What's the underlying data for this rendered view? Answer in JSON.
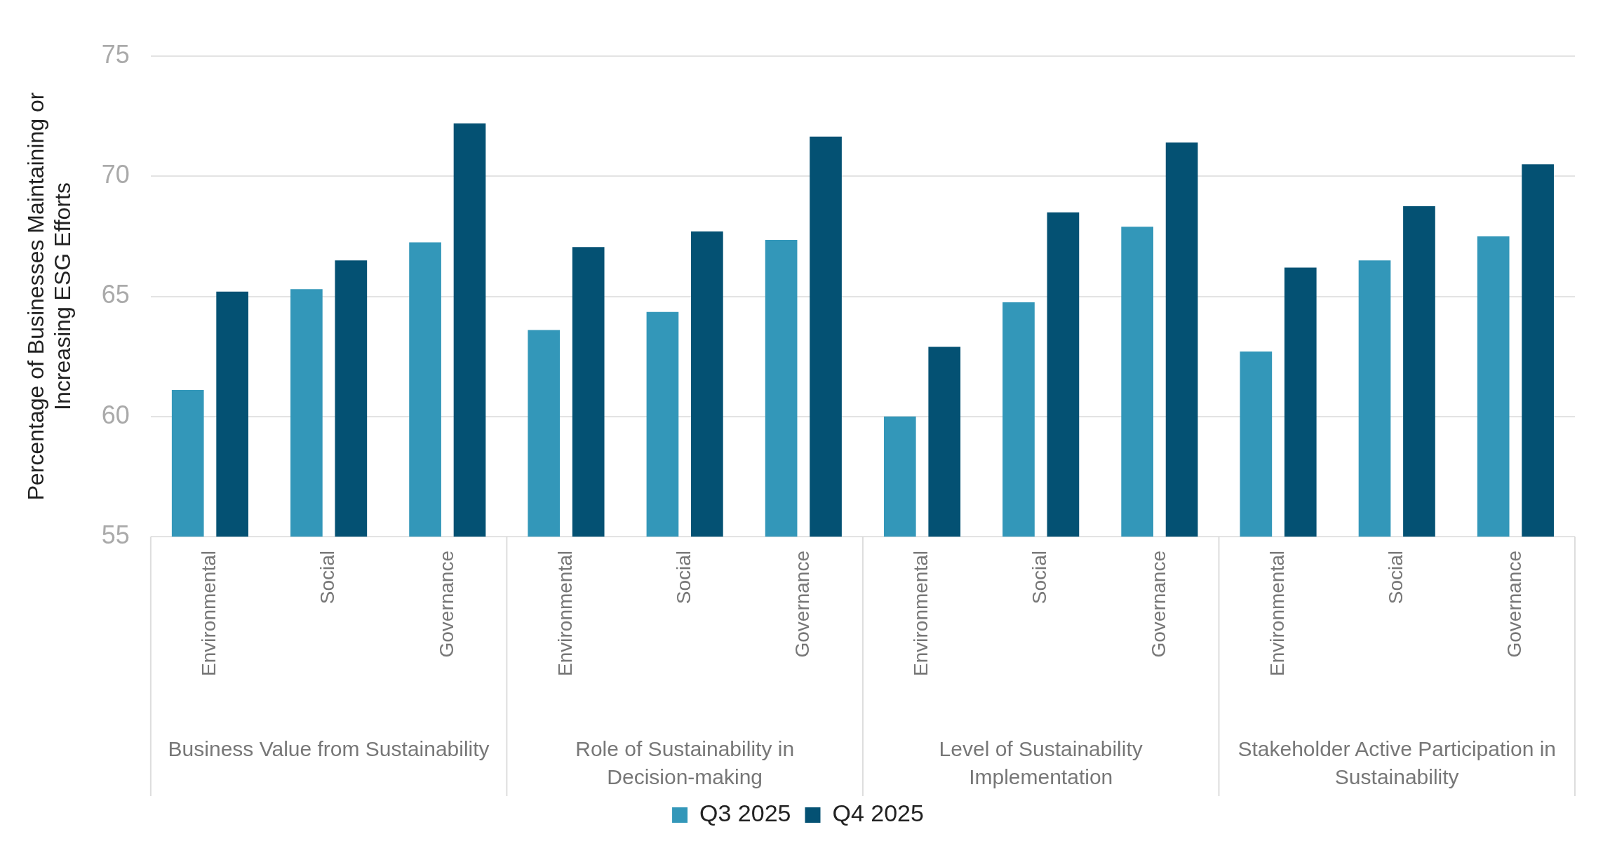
{
  "chart_data": {
    "type": "bar",
    "ylabel": "Percentage of Businesses Maintaining or Increasing ESG Efforts",
    "categories": [
      "Environmental",
      "Social",
      "Governance",
      "Environmental",
      "Social",
      "Governance",
      "Environmental",
      "Social",
      "Governance",
      "Environmental",
      "Social",
      "Governance"
    ],
    "annotations": [
      "Business Value from Sustainability",
      "Role of Sustainability in Decision-making",
      "Level of Sustainability Implementation",
      "Stakeholder Active Participation in Sustainability"
    ],
    "series": [
      {
        "name": "Q3 2025",
        "color": "#3397b9",
        "values": [
          61.1,
          65.3,
          67.25,
          63.6,
          64.35,
          67.35,
          60.0,
          64.75,
          67.9,
          62.7,
          66.5,
          67.5
        ]
      },
      {
        "name": "Q4 2025",
        "color": "#045173",
        "values": [
          65.2,
          66.5,
          72.2,
          67.05,
          67.7,
          71.65,
          62.9,
          68.5,
          71.4,
          66.2,
          68.75,
          70.5
        ]
      }
    ],
    "ylim": [
      55,
      75
    ],
    "yticks": [
      55,
      60,
      65,
      70,
      75
    ],
    "grid": "y",
    "legend": "bottom"
  }
}
